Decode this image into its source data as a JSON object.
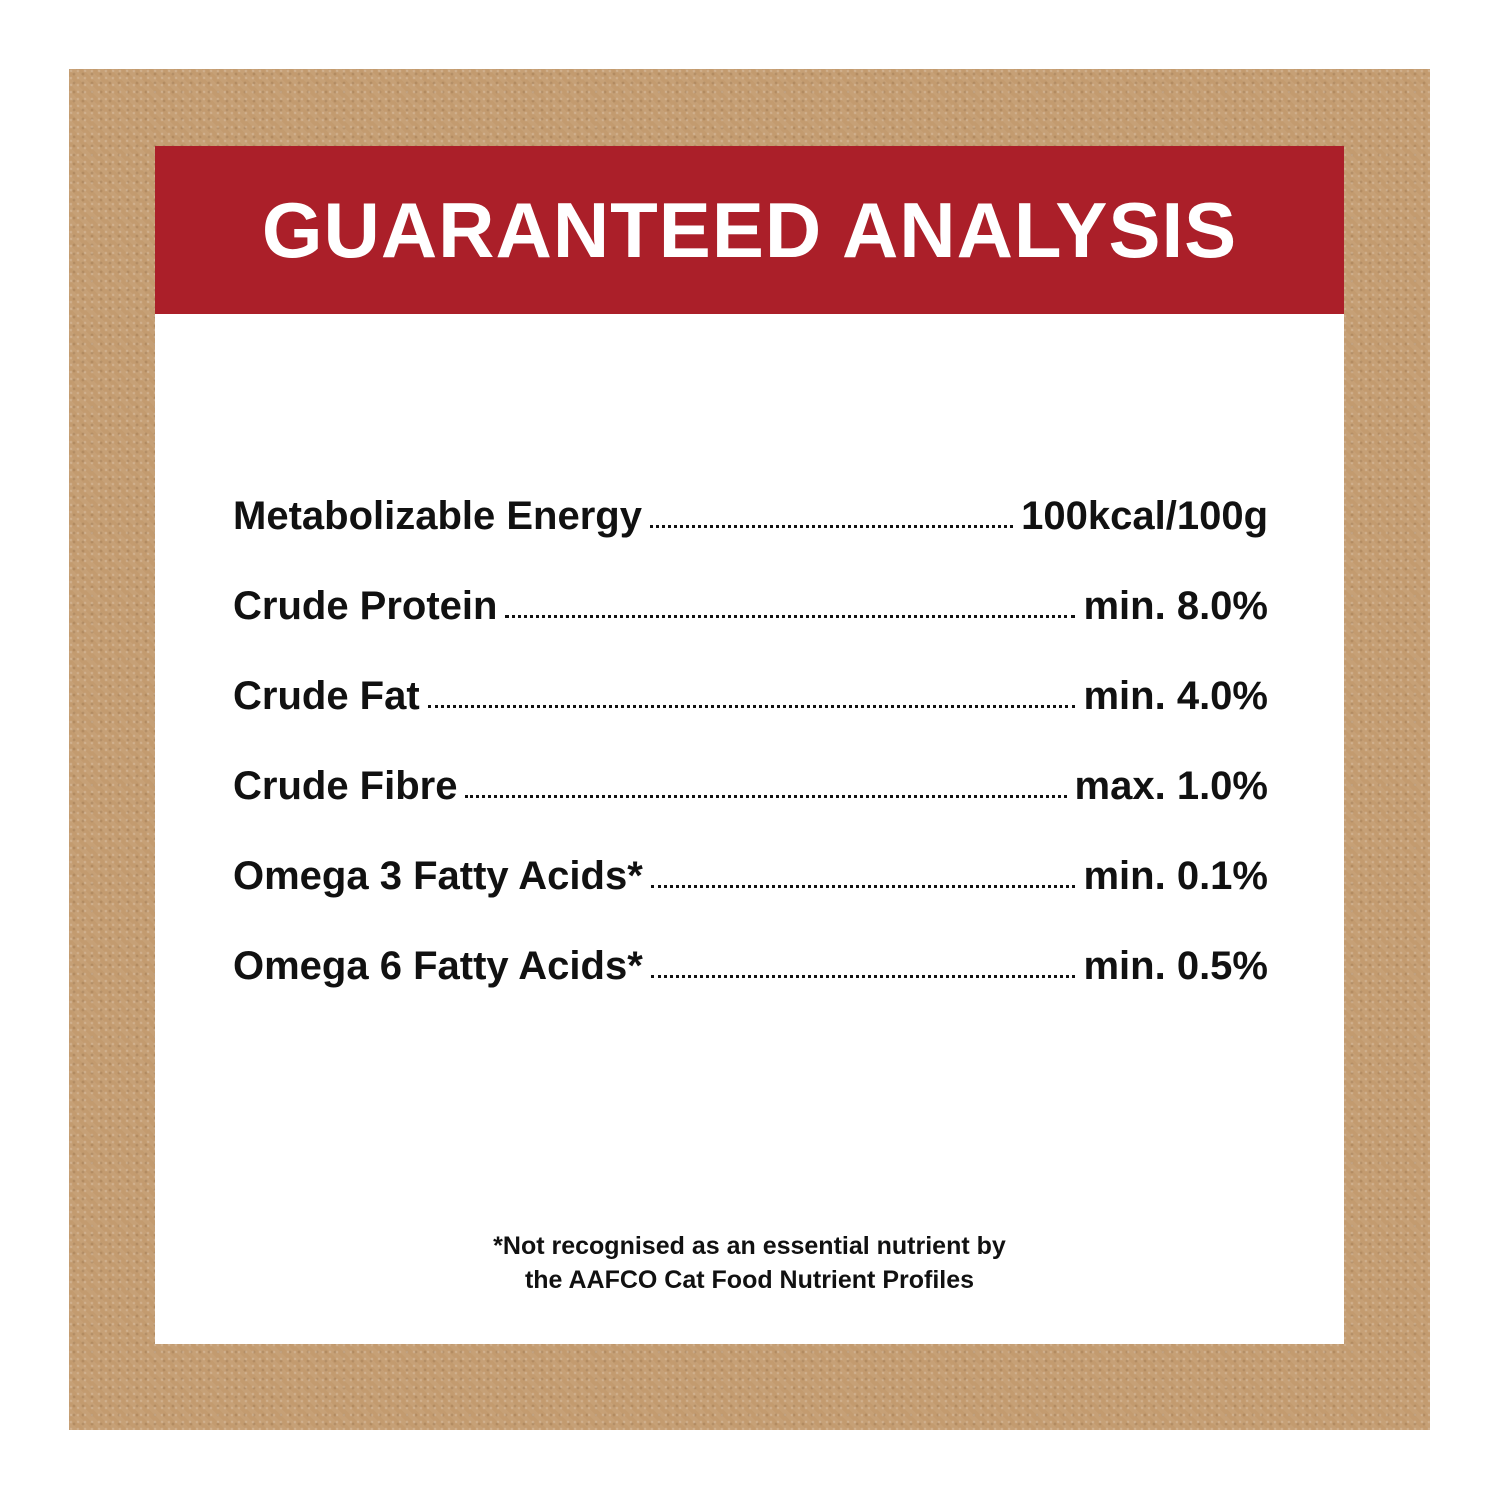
{
  "colors": {
    "frame": "#c39b6f",
    "header": "#ab1f29",
    "panel": "#ffffff",
    "text": "#111111"
  },
  "header": {
    "title": "GUARANTEED ANALYSIS"
  },
  "analysis": [
    {
      "label": "Metabolizable Energy",
      "value": "100kcal/100g"
    },
    {
      "label": "Crude Protein",
      "value": "min. 8.0%"
    },
    {
      "label": "Crude Fat",
      "value": "min. 4.0%"
    },
    {
      "label": "Crude Fibre",
      "value": "max. 1.0%"
    },
    {
      "label": "Omega 3 Fatty Acids*",
      "value": "min. 0.1%"
    },
    {
      "label": "Omega 6 Fatty Acids*",
      "value": "min. 0.5%"
    }
  ],
  "footnote": {
    "line1": "*Not recognised as an essential nutrient by",
    "line2": "the AAFCO Cat Food Nutrient Profiles"
  }
}
